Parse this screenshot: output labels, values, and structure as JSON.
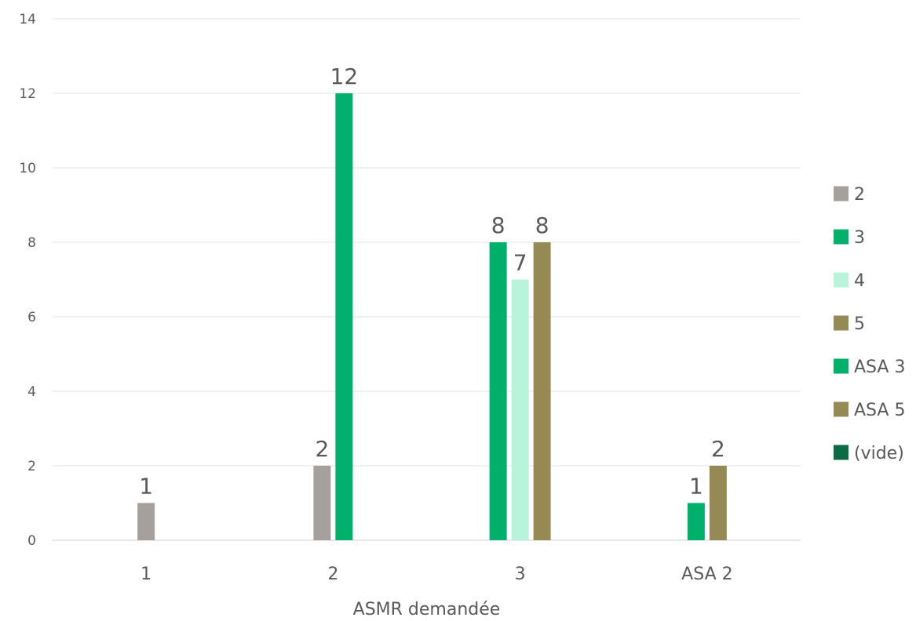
{
  "chart_data": {
    "type": "bar",
    "title": "",
    "xlabel": "ASMR demandée",
    "ylabel": "",
    "ylim": [
      0,
      14
    ],
    "yticks": [
      0,
      2,
      4,
      6,
      8,
      10,
      12,
      14
    ],
    "grid": true,
    "legend_position": "right",
    "categories": [
      "1",
      "2",
      "3",
      "ASA 2"
    ],
    "series": [
      {
        "name": "2",
        "color": "#a5a09b",
        "values": [
          1,
          2,
          null,
          null
        ]
      },
      {
        "name": "3",
        "color": "#00b06b",
        "values": [
          null,
          12,
          8,
          null
        ]
      },
      {
        "name": "4",
        "color": "#b8f4dc",
        "values": [
          null,
          null,
          7,
          null
        ]
      },
      {
        "name": "5",
        "color": "#968a54",
        "values": [
          null,
          null,
          8,
          null
        ]
      },
      {
        "name": "ASA 3",
        "color": "#00b06b",
        "values": [
          null,
          null,
          null,
          1
        ]
      },
      {
        "name": "ASA 5",
        "color": "#968a54",
        "values": [
          null,
          null,
          null,
          2
        ]
      },
      {
        "name": "(vide)",
        "color": "#0b6b45",
        "values": [
          null,
          null,
          null,
          null
        ]
      }
    ]
  }
}
